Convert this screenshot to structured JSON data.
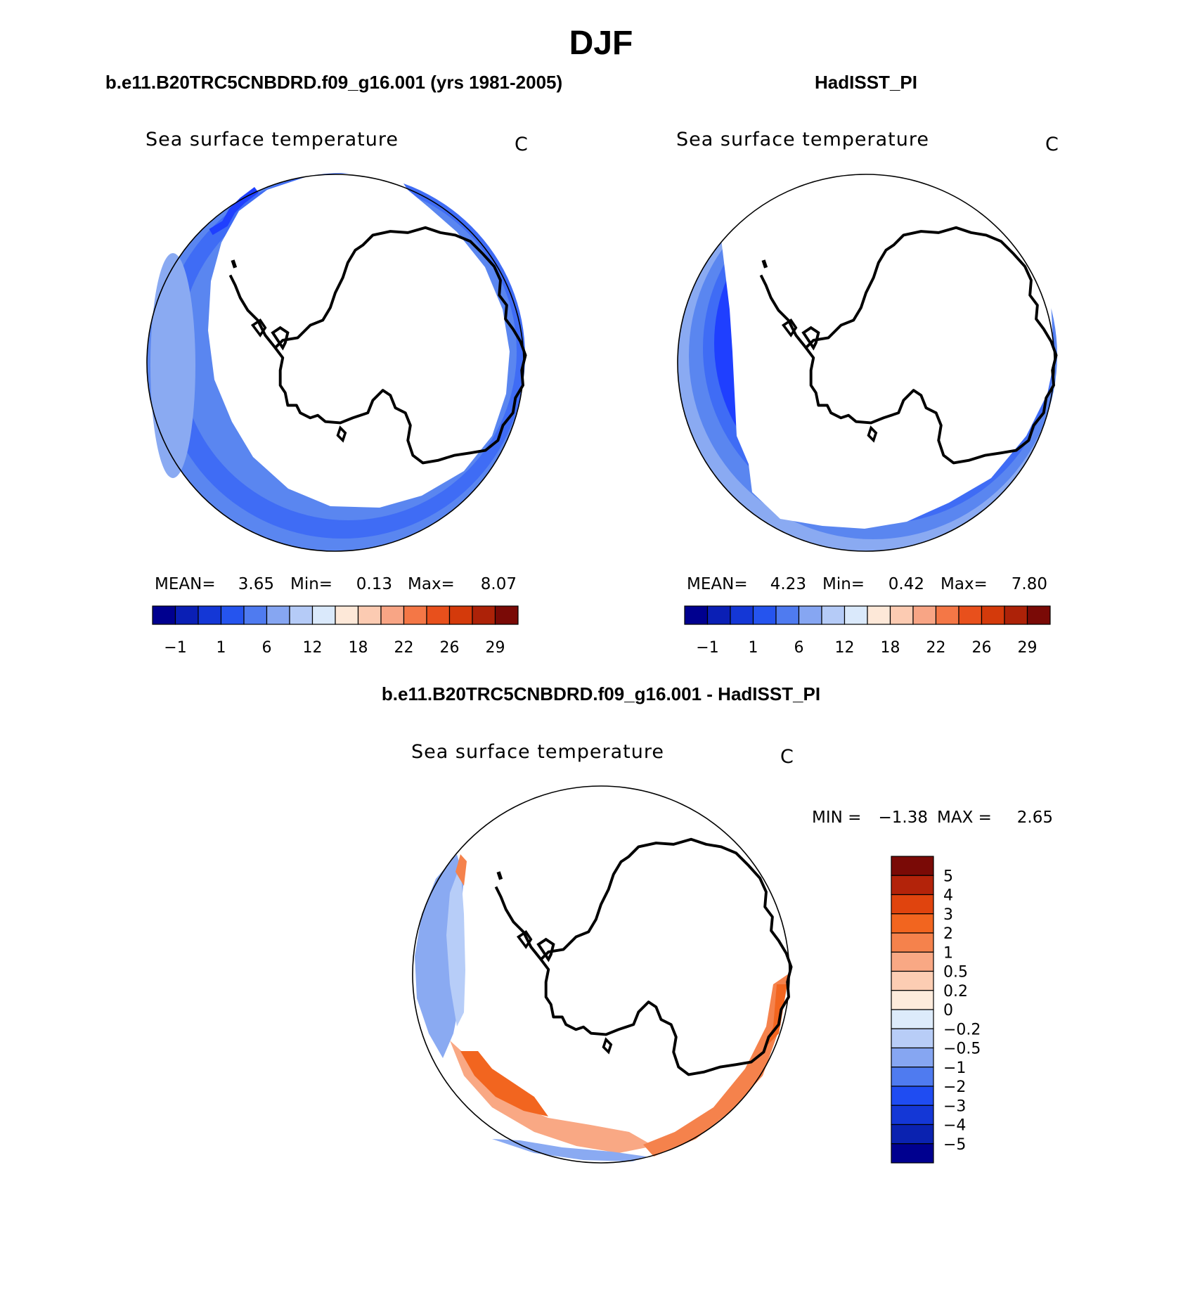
{
  "page": {
    "season_title": "DJF",
    "colors": {
      "ocean_blues": [
        "#1f3fff",
        "#3f6cf5",
        "#5a86f0",
        "#8aaaf2",
        "#b7cdf8"
      ],
      "land": "#ffffff",
      "coast": "#000000"
    }
  },
  "panels": {
    "model": {
      "heading": "b.e11.B20TRC5CNBDRD.f09_g16.001 (yrs 1981-2005)",
      "subtitle": "Sea surface temperature",
      "units": "C",
      "stats": {
        "mean_label": "MEAN=",
        "mean_value": "3.65",
        "min_label": "Min=",
        "min_value": "0.13",
        "max_label": "Max=",
        "max_value": "8.07"
      }
    },
    "obs": {
      "heading": "HadISST_PI",
      "subtitle": "Sea surface temperature",
      "units": "C",
      "stats": {
        "mean_label": "MEAN=",
        "mean_value": "4.23",
        "min_label": "Min=",
        "min_value": "0.42",
        "max_label": "Max=",
        "max_value": "7.80"
      }
    },
    "diff": {
      "heading": "b.e11.B20TRC5CNBDRD.f09_g16.001 - HadISST_PI",
      "subtitle": "Sea surface temperature",
      "units": "C",
      "stats": {
        "min_label": "MIN =",
        "min_value": "−1.38",
        "max_label": "MAX =",
        "max_value": "2.65"
      }
    }
  },
  "colorbars": {
    "sst": {
      "colors": [
        "#00008f",
        "#0a1fb5",
        "#1437d6",
        "#2554ee",
        "#4f7bf0",
        "#86a6f2",
        "#b5cbf7",
        "#dae9fb",
        "#fde8d8",
        "#fccbb2",
        "#f8a585",
        "#f47746",
        "#e8501c",
        "#d43a0b",
        "#ad2208",
        "#7a0a06"
      ],
      "tick_labels": [
        "−1",
        "1",
        "6",
        "12",
        "18",
        "22",
        "26",
        "29"
      ]
    },
    "diff": {
      "colors_top_to_bottom": [
        "#7a0a06",
        "#b3230a",
        "#e0440e",
        "#f2651f",
        "#f5824c",
        "#f9a884",
        "#fccdb3",
        "#fdebdc",
        "#ddebfb",
        "#b8cdf7",
        "#86a6f2",
        "#4f7bf0",
        "#1f4cf2",
        "#1437d6",
        "#0a22b0",
        "#00008f"
      ],
      "tick_labels_top_to_bottom": [
        "5",
        "4",
        "3",
        "2",
        "1",
        "0.5",
        "0.2",
        "0",
        "−0.2",
        "−0.5",
        "−1",
        "−2",
        "−3",
        "−4",
        "−5"
      ]
    }
  }
}
